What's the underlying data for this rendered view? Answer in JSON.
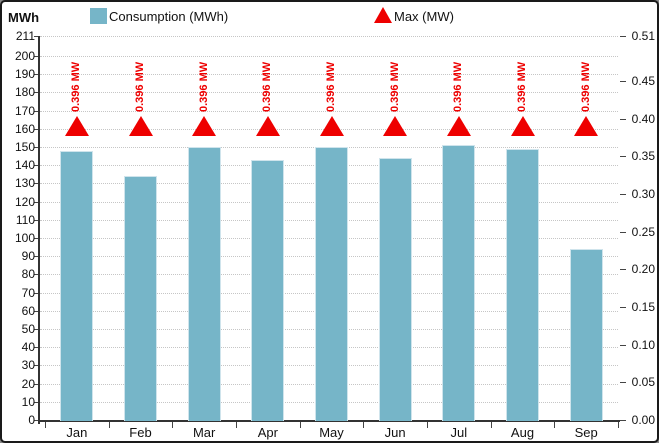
{
  "header": {
    "y_axis_title": "MWh"
  },
  "colors": {
    "bar": "#76b5c8",
    "bar_border": "#cfe4ec",
    "marker": "#ee0000",
    "grid": "#c6c6c6",
    "axis": "#333333"
  },
  "chart_data": {
    "type": "bar",
    "title": "",
    "legend_position": "top",
    "grid": "horizontal-dotted",
    "categories": [
      "Jan",
      "Feb",
      "Mar",
      "Apr",
      "May",
      "Jun",
      "Jul",
      "Aug",
      "Sep"
    ],
    "series": [
      {
        "name": "Consumption (MWh)",
        "type": "bar",
        "axis": "left",
        "color": "#76b5c8",
        "values": [
          148,
          134,
          150,
          143,
          150,
          144,
          151,
          149,
          94
        ]
      },
      {
        "name": "Max (MW)",
        "type": "point",
        "marker": "triangle",
        "axis": "right",
        "color": "#ee0000",
        "values": [
          0.396,
          0.396,
          0.396,
          0.396,
          0.396,
          0.396,
          0.396,
          0.396,
          0.396
        ],
        "point_label": "0.396 MW"
      }
    ],
    "left_axis": {
      "title": "MWh",
      "min": 0,
      "max": 211,
      "ticks": [
        0,
        10,
        20,
        30,
        40,
        50,
        60,
        70,
        80,
        90,
        100,
        110,
        120,
        130,
        140,
        150,
        160,
        170,
        180,
        190,
        200,
        211
      ],
      "tick_labels": [
        "0",
        "10",
        "20",
        "30",
        "40",
        "50",
        "60",
        "70",
        "80",
        "90",
        "100",
        "110",
        "120",
        "130",
        "140",
        "150",
        "160",
        "170",
        "180",
        "190",
        "200",
        "211"
      ]
    },
    "right_axis": {
      "title": "",
      "min": 0,
      "max": 0.51,
      "ticks": [
        0,
        0.05,
        0.1,
        0.15,
        0.2,
        0.25,
        0.3,
        0.35,
        0.4,
        0.45,
        0.51
      ],
      "tick_labels": [
        "0.00",
        "0.05",
        "0.10",
        "0.15",
        "0.20",
        "0.25",
        "0.30",
        "0.35",
        "0.40",
        "0.45",
        "0.51"
      ]
    }
  }
}
